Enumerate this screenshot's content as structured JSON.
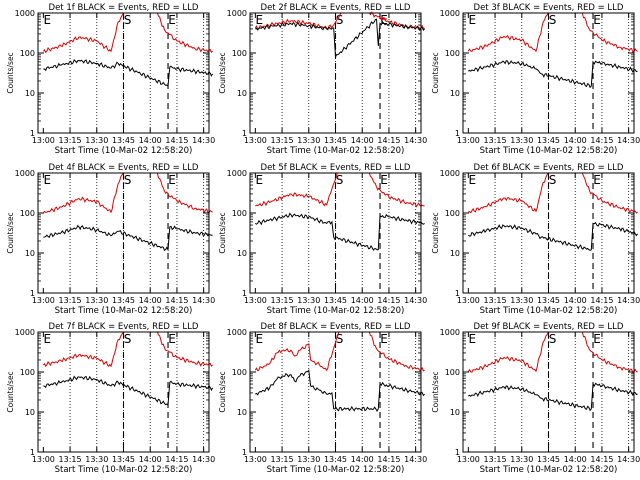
{
  "colors": {
    "events": "#000000",
    "lld": "#e00000",
    "axes": "#000000"
  },
  "chart_data": [
    {
      "type": "line",
      "title": "Det 1f BLACK = Events, RED = LLD",
      "xlabel": "Start Time (10-Mar-02 12:58:20)",
      "ylabel": "Counts/sec",
      "yscale": "log",
      "ylim": [
        1,
        1000
      ],
      "ytick_labels": [
        "1",
        "10",
        "100",
        "1000"
      ],
      "xtick_labels": [
        "13:00",
        "13:15",
        "13:30",
        "13:45",
        "14:00",
        "14:15",
        "14:30"
      ],
      "markers": [
        {
          "label": "E",
          "x": "13:00"
        },
        {
          "label": "S",
          "x": "13:45"
        },
        {
          "label": "E",
          "x": "14:10"
        }
      ],
      "series": [
        {
          "name": "LLD",
          "x": [
            "13:00",
            "13:10",
            "13:20",
            "13:30",
            "13:38",
            "13:42",
            "13:45",
            "13:50",
            "13:58",
            "14:04",
            "14:08",
            "14:10",
            "14:15",
            "14:25",
            "14:35"
          ],
          "y": [
            110,
            150,
            250,
            200,
            110,
            600,
            1000,
            1000,
            1000,
            1000,
            380,
            320,
            200,
            130,
            110
          ]
        },
        {
          "name": "Events",
          "x": [
            "13:00",
            "13:10",
            "13:20",
            "13:30",
            "13:38",
            "13:42",
            "14:10",
            "14:11",
            "14:15",
            "14:25",
            "14:35"
          ],
          "y": [
            40,
            50,
            65,
            55,
            42,
            55,
            15,
            45,
            40,
            35,
            30
          ]
        }
      ]
    },
    {
      "type": "line",
      "title": "Det 2f BLACK = Events, RED = LLD",
      "xlabel": "Start Time (10-Mar-02 12:58:20)",
      "ylabel": "Counts/sec",
      "yscale": "log",
      "ylim": [
        1,
        1000
      ],
      "ytick_labels": [
        "1",
        "10",
        "100",
        "1000"
      ],
      "xtick_labels": [
        "13:00",
        "13:15",
        "13:30",
        "13:45",
        "14:00",
        "14:15",
        "14:30"
      ],
      "markers": [
        {
          "label": "E",
          "x": "13:00"
        },
        {
          "label": "S",
          "x": "13:45"
        },
        {
          "label": "E",
          "x": "14:10"
        }
      ],
      "series": [
        {
          "name": "LLD",
          "x": [
            "13:00",
            "13:10",
            "13:20",
            "13:30",
            "13:40",
            "13:44",
            "13:48",
            "14:04",
            "14:08",
            "14:15",
            "14:25",
            "14:35"
          ],
          "y": [
            420,
            520,
            640,
            550,
            420,
            500,
            1000,
            1000,
            850,
            600,
            470,
            420
          ]
        },
        {
          "name": "Events",
          "x": [
            "13:00",
            "13:10",
            "13:20",
            "13:30",
            "13:40",
            "13:44",
            "13:45",
            "14:08",
            "14:09",
            "14:10",
            "14:15",
            "14:25",
            "14:35"
          ],
          "y": [
            400,
            470,
            540,
            480,
            400,
            420,
            80,
            700,
            150,
            550,
            520,
            450,
            400
          ]
        }
      ]
    },
    {
      "type": "line",
      "title": "Det 3f BLACK = Events, RED = LLD",
      "xlabel": "Start Time (10-Mar-02 12:58:20)",
      "ylabel": "Counts/sec",
      "yscale": "log",
      "ylim": [
        1,
        1000
      ],
      "ytick_labels": [
        "1",
        "10",
        "100",
        "1000"
      ],
      "xtick_labels": [
        "13:00",
        "13:15",
        "13:30",
        "13:45",
        "14:00",
        "14:15",
        "14:30"
      ],
      "markers": [
        {
          "label": "E",
          "x": "13:00"
        },
        {
          "label": "S",
          "x": "13:45"
        },
        {
          "label": "E",
          "x": "14:10"
        }
      ],
      "series": [
        {
          "name": "LLD",
          "x": [
            "13:00",
            "13:10",
            "13:20",
            "13:30",
            "13:38",
            "13:42",
            "13:45",
            "13:50",
            "13:58",
            "14:04",
            "14:08",
            "14:10",
            "14:15",
            "14:25",
            "14:35"
          ],
          "y": [
            110,
            150,
            260,
            210,
            110,
            600,
            1000,
            1000,
            1000,
            1000,
            380,
            330,
            210,
            140,
            110
          ]
        },
        {
          "name": "Events",
          "x": [
            "13:00",
            "13:10",
            "13:20",
            "13:30",
            "13:38",
            "13:41",
            "14:09",
            "14:10",
            "14:15",
            "14:25",
            "14:35"
          ],
          "y": [
            35,
            45,
            60,
            55,
            40,
            30,
            15,
            60,
            55,
            45,
            35
          ]
        }
      ]
    },
    {
      "type": "line",
      "title": "Det 4f BLACK = Events, RED = LLD",
      "xlabel": "Start Time (10-Mar-02 12:58:20)",
      "ylabel": "Counts/sec",
      "yscale": "log",
      "ylim": [
        1,
        1000
      ],
      "ytick_labels": [
        "1",
        "10",
        "100",
        "1000"
      ],
      "xtick_labels": [
        "13:00",
        "13:15",
        "13:30",
        "13:45",
        "14:00",
        "14:15",
        "14:30"
      ],
      "markers": [
        {
          "label": "E",
          "x": "13:00"
        },
        {
          "label": "S",
          "x": "13:45"
        },
        {
          "label": "E",
          "x": "14:10"
        }
      ],
      "series": [
        {
          "name": "LLD",
          "x": [
            "13:00",
            "13:10",
            "13:20",
            "13:30",
            "13:38",
            "13:42",
            "13:45",
            "13:50",
            "13:58",
            "14:04",
            "14:08",
            "14:10",
            "14:15",
            "14:25",
            "14:35"
          ],
          "y": [
            100,
            140,
            230,
            190,
            105,
            550,
            1000,
            1000,
            1000,
            1000,
            350,
            300,
            200,
            130,
            105
          ]
        },
        {
          "name": "Events",
          "x": [
            "13:00",
            "13:10",
            "13:20",
            "13:30",
            "13:38",
            "13:42",
            "14:10",
            "14:11",
            "14:15",
            "14:25",
            "14:35"
          ],
          "y": [
            25,
            32,
            45,
            38,
            27,
            35,
            12,
            45,
            40,
            32,
            28
          ]
        }
      ]
    },
    {
      "type": "line",
      "title": "Det 5f BLACK = Events, RED = LLD",
      "xlabel": "Start Time (10-Mar-02 12:58:20)",
      "ylabel": "Counts/sec",
      "yscale": "log",
      "ylim": [
        1,
        1000
      ],
      "ytick_labels": [
        "1",
        "10",
        "100",
        "1000"
      ],
      "xtick_labels": [
        "13:00",
        "13:15",
        "13:30",
        "13:45",
        "14:00",
        "14:15",
        "14:30"
      ],
      "markers": [
        {
          "label": "E",
          "x": "13:00"
        },
        {
          "label": "S",
          "x": "13:45"
        },
        {
          "label": "E",
          "x": "14:10"
        }
      ],
      "series": [
        {
          "name": "LLD",
          "x": [
            "13:00",
            "13:10",
            "13:20",
            "13:30",
            "13:40",
            "13:43",
            "13:46",
            "14:04",
            "14:08",
            "14:10",
            "14:15",
            "14:25",
            "14:35"
          ],
          "y": [
            150,
            200,
            300,
            260,
            160,
            400,
            1000,
            1000,
            450,
            380,
            250,
            180,
            150
          ]
        },
        {
          "name": "Events",
          "x": [
            "13:00",
            "13:10",
            "13:20",
            "13:30",
            "13:40",
            "13:43",
            "13:44",
            "14:09",
            "14:10",
            "14:15",
            "14:25",
            "14:35"
          ],
          "y": [
            55,
            70,
            90,
            80,
            55,
            60,
            25,
            12,
            85,
            80,
            65,
            55
          ]
        }
      ]
    },
    {
      "type": "line",
      "title": "Det 6f BLACK = Events, RED = LLD",
      "xlabel": "Start Time (10-Mar-02 12:58:20)",
      "ylabel": "Counts/sec",
      "yscale": "log",
      "ylim": [
        1,
        1000
      ],
      "ytick_labels": [
        "1",
        "10",
        "100",
        "1000"
      ],
      "xtick_labels": [
        "13:00",
        "13:15",
        "13:30",
        "13:45",
        "14:00",
        "14:15",
        "14:30"
      ],
      "markers": [
        {
          "label": "E",
          "x": "13:00"
        },
        {
          "label": "S",
          "x": "13:45"
        },
        {
          "label": "E",
          "x": "14:10"
        }
      ],
      "series": [
        {
          "name": "LLD",
          "x": [
            "13:00",
            "13:10",
            "13:20",
            "13:30",
            "13:38",
            "13:42",
            "13:45",
            "13:50",
            "13:58",
            "14:04",
            "14:08",
            "14:10",
            "14:15",
            "14:25",
            "14:35"
          ],
          "y": [
            105,
            145,
            240,
            200,
            110,
            580,
            1000,
            1000,
            1000,
            1000,
            360,
            310,
            200,
            135,
            105
          ]
        },
        {
          "name": "Events",
          "x": [
            "13:00",
            "13:10",
            "13:20",
            "13:30",
            "13:38",
            "13:41",
            "14:09",
            "14:10",
            "14:15",
            "14:25",
            "14:35"
          ],
          "y": [
            28,
            36,
            48,
            42,
            30,
            25,
            12,
            55,
            50,
            40,
            30
          ]
        }
      ]
    },
    {
      "type": "line",
      "title": "Det 7f BLACK = Events, RED = LLD",
      "xlabel": "Start Time (10-Mar-02 12:58:20)",
      "ylabel": "Counts/sec",
      "yscale": "log",
      "ylim": [
        1,
        1000
      ],
      "ytick_labels": [
        "1",
        "10",
        "100",
        "1000"
      ],
      "xtick_labels": [
        "13:00",
        "13:15",
        "13:30",
        "13:45",
        "14:00",
        "14:15",
        "14:30"
      ],
      "markers": [
        {
          "label": "E",
          "x": "13:00"
        },
        {
          "label": "S",
          "x": "13:45"
        },
        {
          "label": "E",
          "x": "14:10"
        }
      ],
      "series": [
        {
          "name": "LLD",
          "x": [
            "13:00",
            "13:10",
            "13:20",
            "13:30",
            "13:38",
            "13:42",
            "13:45",
            "13:50",
            "13:58",
            "14:04",
            "14:08",
            "14:10",
            "14:15",
            "14:25",
            "14:35"
          ],
          "y": [
            150,
            190,
            270,
            220,
            140,
            650,
            1000,
            1000,
            1000,
            1000,
            400,
            340,
            230,
            170,
            150
          ]
        },
        {
          "name": "Events",
          "x": [
            "13:00",
            "13:10",
            "13:20",
            "13:30",
            "13:38",
            "13:42",
            "14:10",
            "14:11",
            "14:15",
            "14:25",
            "14:35"
          ],
          "y": [
            45,
            55,
            75,
            65,
            45,
            55,
            15,
            55,
            50,
            45,
            40
          ]
        }
      ]
    },
    {
      "type": "line",
      "title": "Det 8f BLACK = Events, RED = LLD",
      "xlabel": "Start Time (10-Mar-02 12:58:20)",
      "ylabel": "Counts/sec",
      "yscale": "log",
      "ylim": [
        1,
        1000
      ],
      "ytick_labels": [
        "1",
        "10",
        "100",
        "1000"
      ],
      "xtick_labels": [
        "13:00",
        "13:15",
        "13:30",
        "13:45",
        "14:00",
        "14:15",
        "14:30"
      ],
      "markers": [
        {
          "label": "E",
          "x": "13:00"
        },
        {
          "label": "S",
          "x": "13:45"
        },
        {
          "label": "E",
          "x": "14:10"
        }
      ],
      "series": [
        {
          "name": "LLD",
          "x": [
            "13:00",
            "13:08",
            "13:12",
            "13:15",
            "13:20",
            "13:22",
            "13:25",
            "13:30",
            "13:31",
            "13:36",
            "13:40",
            "13:44",
            "13:47",
            "14:04",
            "14:08",
            "14:10",
            "14:15",
            "14:25",
            "14:35"
          ],
          "y": [
            110,
            160,
            300,
            340,
            350,
            250,
            350,
            500,
            200,
            150,
            110,
            400,
            1000,
            1000,
            380,
            320,
            210,
            140,
            110
          ]
        },
        {
          "name": "Events",
          "x": [
            "13:00",
            "13:08",
            "13:12",
            "13:15",
            "13:20",
            "13:22",
            "13:25",
            "13:30",
            "13:31",
            "13:36",
            "13:40",
            "13:43",
            "13:44",
            "14:09",
            "14:10",
            "14:15",
            "14:25",
            "14:35"
          ],
          "y": [
            28,
            40,
            65,
            80,
            85,
            60,
            80,
            110,
            45,
            35,
            28,
            30,
            12,
            12,
            50,
            45,
            35,
            28
          ]
        }
      ]
    },
    {
      "type": "line",
      "title": "Det 9f BLACK = Events, RED = LLD",
      "xlabel": "Start Time (10-Mar-02 12:58:20)",
      "ylabel": "Counts/sec",
      "yscale": "log",
      "ylim": [
        1,
        1000
      ],
      "ytick_labels": [
        "1",
        "10",
        "100",
        "1000"
      ],
      "xtick_labels": [
        "13:00",
        "13:15",
        "13:30",
        "13:45",
        "14:00",
        "14:15",
        "14:30"
      ],
      "markers": [
        {
          "label": "E",
          "x": "13:00"
        },
        {
          "label": "S",
          "x": "13:45"
        },
        {
          "label": "E",
          "x": "14:10"
        }
      ],
      "series": [
        {
          "name": "LLD",
          "x": [
            "13:00",
            "13:10",
            "13:20",
            "13:30",
            "13:38",
            "13:42",
            "13:45",
            "13:50",
            "13:58",
            "14:04",
            "14:08",
            "14:10",
            "14:15",
            "14:25",
            "14:35"
          ],
          "y": [
            100,
            140,
            230,
            190,
            105,
            560,
            1000,
            1000,
            1000,
            1000,
            360,
            300,
            200,
            130,
            100
          ]
        },
        {
          "name": "Events",
          "x": [
            "13:00",
            "13:10",
            "13:20",
            "13:30",
            "13:38",
            "13:41",
            "14:09",
            "14:10",
            "14:15",
            "14:25",
            "14:35"
          ],
          "y": [
            25,
            32,
            42,
            38,
            27,
            22,
            12,
            50,
            45,
            35,
            28
          ]
        }
      ]
    }
  ]
}
